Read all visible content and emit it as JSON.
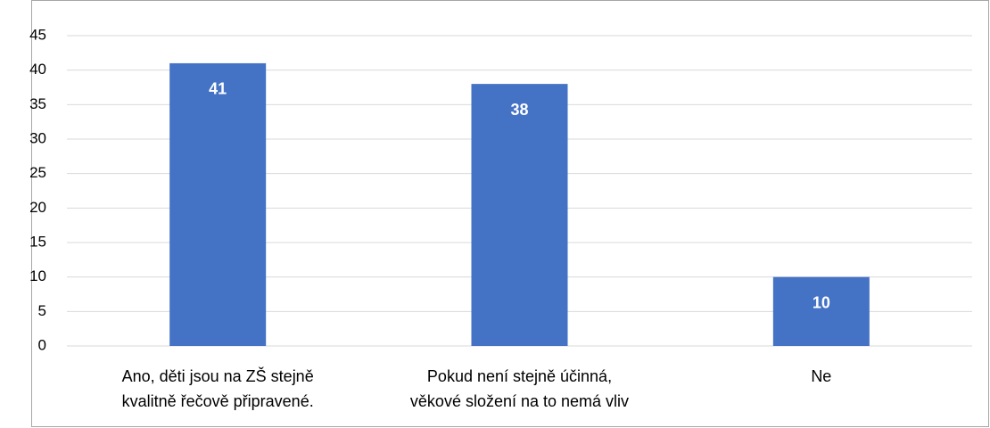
{
  "chart_data": {
    "type": "bar",
    "categories": [
      "Ano, děti jsou na ZŠ stejně\nkvalitně řečově připravené.",
      "Pokud není stejně účinná,\nvěkové složení na to nemá vliv",
      "Ne"
    ],
    "values": [
      41,
      38,
      10
    ],
    "color": "#4472c4",
    "ylim": [
      0,
      45
    ],
    "yticks": [
      0,
      5,
      10,
      15,
      20,
      25,
      30,
      35,
      40,
      45
    ],
    "grid": true
  }
}
